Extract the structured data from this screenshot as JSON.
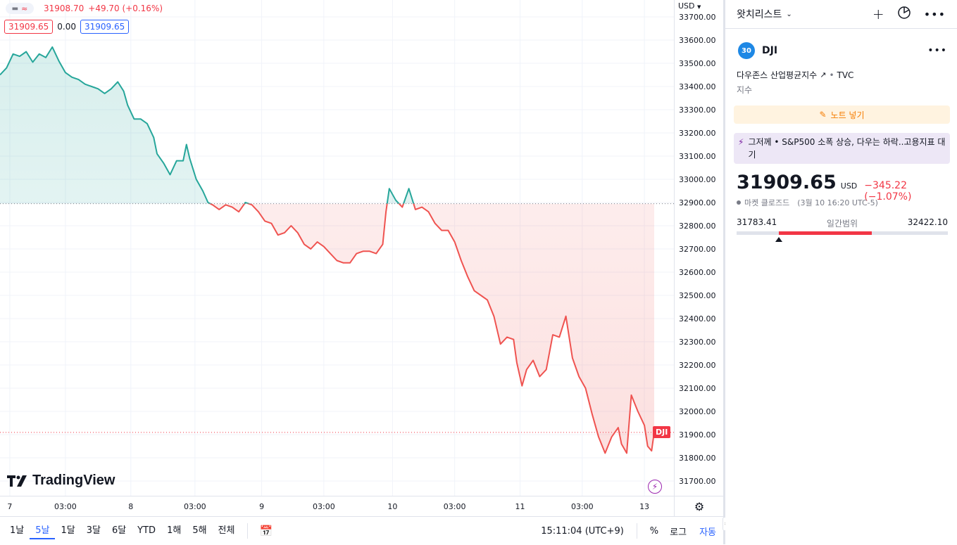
{
  "legend": {
    "icon_names": [
      "minus-icon",
      "approx-icon"
    ],
    "last_price": "31908.70",
    "change": "+49.70 (+0.16%)",
    "bid": "31909.65",
    "spread": "0.00",
    "ask": "31909.65"
  },
  "currency": "USD",
  "price_axis": {
    "min": 31650,
    "max": 33750,
    "ticks": [
      "33700.00",
      "33600.00",
      "33500.00",
      "33400.00",
      "33300.00",
      "33200.00",
      "33100.00",
      "33000.00",
      "32900.00",
      "32800.00",
      "32700.00",
      "32600.00",
      "32500.00",
      "32400.00",
      "32300.00",
      "32200.00",
      "32100.00",
      "32000.00",
      "31900.00",
      "31800.00",
      "31700.00"
    ]
  },
  "time_axis": {
    "labels": [
      "7",
      "03:00",
      "8",
      "03:00",
      "9",
      "03:00",
      "10",
      "03:00",
      "11",
      "03:00",
      "13"
    ]
  },
  "chart_data": {
    "type": "area",
    "symbol": "DJI",
    "baseline": 32895,
    "current": 31909.65,
    "colors": {
      "above": "#26a69a",
      "below": "#ef5350"
    },
    "x_range": [
      0,
      100
    ],
    "x_ticks": [
      1.5,
      10,
      20,
      29.8,
      40,
      49.5,
      60,
      69.5,
      79.5,
      89,
      98.5
    ],
    "series": [
      {
        "values": [
          [
            0,
            33450
          ],
          [
            1,
            33480
          ],
          [
            2,
            33540
          ],
          [
            3,
            33530
          ],
          [
            4,
            33550
          ],
          [
            5,
            33505
          ],
          [
            6,
            33540
          ],
          [
            7,
            33525
          ],
          [
            8,
            33570
          ],
          [
            9,
            33510
          ],
          [
            10,
            33460
          ],
          [
            11,
            33440
          ],
          [
            12,
            33430
          ],
          [
            13,
            33410
          ],
          [
            14,
            33400
          ],
          [
            15,
            33390
          ],
          [
            16,
            33370
          ],
          [
            17,
            33390
          ],
          [
            18,
            33420
          ],
          [
            18.9,
            33380
          ],
          [
            19.5,
            33320
          ],
          [
            20.5,
            33260
          ],
          [
            21.5,
            33260
          ],
          [
            22.5,
            33240
          ],
          [
            23.5,
            33180
          ],
          [
            24,
            33110
          ],
          [
            25,
            33070
          ],
          [
            26,
            33020
          ],
          [
            27,
            33080
          ],
          [
            28,
            33080
          ],
          [
            28.5,
            33150
          ],
          [
            29,
            33090
          ],
          [
            30,
            33000
          ],
          [
            31,
            32950
          ],
          [
            31.8,
            32900
          ],
          [
            32.5,
            32890
          ],
          [
            33.5,
            32870
          ],
          [
            34.5,
            32890
          ],
          [
            35.5,
            32880
          ],
          [
            36.5,
            32860
          ],
          [
            37.5,
            32900
          ],
          [
            38.5,
            32890
          ],
          [
            39.5,
            32860
          ],
          [
            40.5,
            32820
          ],
          [
            41.5,
            32810
          ],
          [
            42.5,
            32760
          ],
          [
            43.5,
            32770
          ],
          [
            44.5,
            32800
          ],
          [
            45.5,
            32770
          ],
          [
            46.5,
            32720
          ],
          [
            47.5,
            32700
          ],
          [
            48.5,
            32730
          ],
          [
            49.5,
            32710
          ],
          [
            50.5,
            32680
          ],
          [
            51.5,
            32650
          ],
          [
            52.5,
            32640
          ],
          [
            53.5,
            32640
          ],
          [
            54.5,
            32680
          ],
          [
            55.5,
            32690
          ],
          [
            56.5,
            32690
          ],
          [
            57.5,
            32680
          ],
          [
            58.5,
            32720
          ],
          [
            59,
            32860
          ],
          [
            59.5,
            32960
          ],
          [
            60.5,
            32910
          ],
          [
            61.5,
            32880
          ],
          [
            62.5,
            32960
          ],
          [
            63.5,
            32870
          ],
          [
            64.5,
            32880
          ],
          [
            65.5,
            32860
          ],
          [
            66.5,
            32810
          ],
          [
            67.5,
            32780
          ],
          [
            68.5,
            32780
          ],
          [
            69.5,
            32730
          ],
          [
            70.5,
            32650
          ],
          [
            71.5,
            32580
          ],
          [
            72.5,
            32520
          ],
          [
            73.5,
            32500
          ],
          [
            74.5,
            32480
          ],
          [
            75.5,
            32410
          ],
          [
            76.5,
            32290
          ],
          [
            77.5,
            32320
          ],
          [
            78.5,
            32310
          ],
          [
            79,
            32210
          ],
          [
            79.8,
            32110
          ],
          [
            80.5,
            32180
          ],
          [
            81.5,
            32220
          ],
          [
            82.5,
            32150
          ],
          [
            83.5,
            32180
          ],
          [
            84.5,
            32330
          ],
          [
            85.5,
            32320
          ],
          [
            86.5,
            32410
          ],
          [
            87.5,
            32230
          ],
          [
            88.5,
            32150
          ],
          [
            89.5,
            32100
          ],
          [
            90.5,
            31990
          ],
          [
            91.5,
            31890
          ],
          [
            92.5,
            31820
          ],
          [
            93.5,
            31890
          ],
          [
            94.5,
            31930
          ],
          [
            95,
            31860
          ],
          [
            95.8,
            31820
          ],
          [
            96.5,
            32070
          ],
          [
            97.5,
            32000
          ],
          [
            98.5,
            31940
          ],
          [
            99,
            31850
          ],
          [
            99.6,
            31830
          ],
          [
            100,
            31909.65
          ]
        ]
      }
    ]
  },
  "price_tag": "DJI",
  "logo_text": "TradingView",
  "bottom_bar": {
    "ranges": [
      "1날",
      "5날",
      "1달",
      "3달",
      "6달",
      "YTD",
      "1해",
      "5해",
      "전체"
    ],
    "active_range": "5날",
    "time": "15:11:04 (UTC+9)",
    "percent": "%",
    "log": "로그",
    "auto": "자동"
  },
  "watchlist": {
    "title": "왓치리스트",
    "symbol_badge": "30",
    "symbol": "DJI",
    "description": "다우존스 산업평균지수",
    "exchange": "TVC",
    "type": "지수",
    "note_label": "노트 넣기",
    "news": "그저께 • S&P500 소폭 상승, 다우는 하락..고용지표 대기",
    "price": "31909.65",
    "currency": "USD",
    "change": "−345.22 (−1.07%)",
    "market_status": "마켓 클로즈드",
    "market_time": "(3월 10 16:20 UTC-5)",
    "day_low": "31783.41",
    "day_high": "32422.10",
    "range_label": "일간범위",
    "range_fill_from": 0.2,
    "range_fill_to": 0.64,
    "range_marker": 0.2
  }
}
